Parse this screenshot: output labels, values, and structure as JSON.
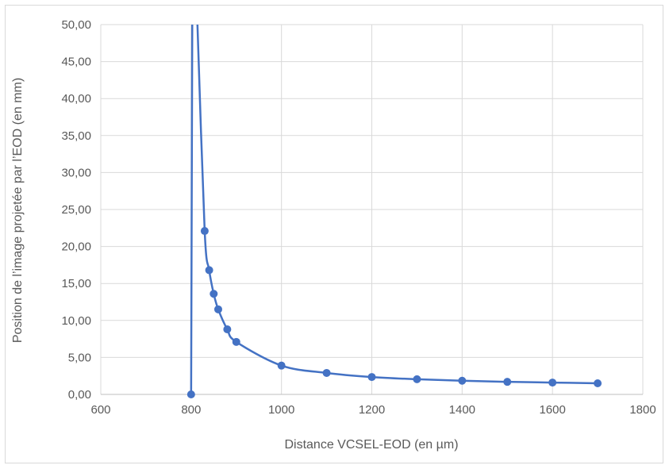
{
  "chart_data": {
    "type": "scatter",
    "xlabel": "Distance VCSEL-EOD (en µm)",
    "ylabel": "Position de l’image projetée par l’EOD (en mm)",
    "xlim": [
      600,
      1800
    ],
    "ylim": [
      0,
      50
    ],
    "x_ticks": [
      600,
      800,
      1000,
      1200,
      1400,
      1600,
      1800
    ],
    "y_ticks": [
      0,
      5,
      10,
      15,
      20,
      25,
      30,
      35,
      40,
      45,
      50
    ],
    "x_tick_labels": [
      "600",
      "800",
      "1000",
      "1200",
      "1400",
      "1600",
      "1800"
    ],
    "y_tick_labels": [
      "0,00",
      "5,00",
      "10,00",
      "15,00",
      "20,00",
      "25,00",
      "30,00",
      "35,00",
      "40,00",
      "45,00",
      "50,00"
    ],
    "grid": true,
    "legend": "none",
    "series": [
      {
        "color": "#4472c4",
        "line": "smooth",
        "markers": true,
        "x": [
          800,
          830,
          840,
          850,
          860,
          880,
          900,
          1000,
          1100,
          1200,
          1300,
          1400,
          1500,
          1600,
          1700
        ],
        "y": [
          0.0,
          22.1,
          16.8,
          13.6,
          11.5,
          8.8,
          7.1,
          3.9,
          2.9,
          2.35,
          2.05,
          1.85,
          1.7,
          1.6,
          1.5
        ],
        "curve_through_offscale": [
          [
            800,
            0.0
          ],
          [
            803,
            50
          ],
          [
            813,
            50
          ],
          [
            830,
            22.1
          ]
        ]
      }
    ]
  }
}
